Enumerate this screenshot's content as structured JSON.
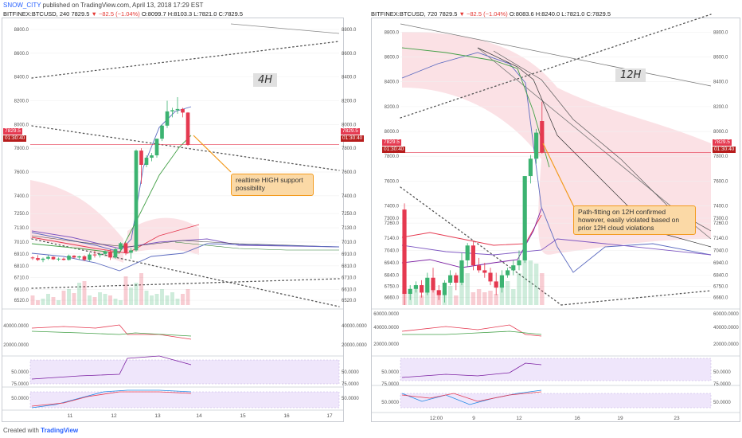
{
  "header": {
    "username": "SNOW_CITY",
    "published_text": "published on TradingView.com, April 13, 2018 17:29 EST"
  },
  "footer": {
    "created_with": "Created with",
    "brand": "TradingView"
  },
  "colors": {
    "up": "#3cb371",
    "down": "#e53950",
    "cloud": "#f7c8cf",
    "annotation_bg": "#fbd9a6",
    "annotation_border": "#f39b1f",
    "purple_band": "#efe6fb"
  },
  "left_panel": {
    "title_symbol": "BITFINEX:BTCUSD, 240",
    "title_price": "7829.5",
    "title_change": "▼ −82.5 (−1.04%)",
    "title_ohlc": "O:8099.7 H:8103.3 L:7821.0 C:7829.5",
    "timeframe_label": "4H",
    "price_tag": "7829.5",
    "time_tag": "01:30:40",
    "annotation": "realtime HIGH support possibility",
    "y_ticks": [
      "8800.0",
      "8600.0",
      "8400.0",
      "8200.0",
      "8000.0",
      "7800.0",
      "7600.0",
      "7400.0",
      "7250.0",
      "7130.0",
      "7010.0",
      "6910.0",
      "6810.0",
      "6710.0",
      "6610.0",
      "6520.0"
    ],
    "osc1_ticks": [
      "40000.0000",
      "20000.0000"
    ],
    "osc2_ticks": [
      "50.0000"
    ],
    "osc3_ticks": [
      "75.0000",
      "50.0000"
    ],
    "x_ticks": [
      "11",
      "12",
      "13",
      "14",
      "15",
      "16",
      "17"
    ],
    "osc3_tick_top": "60.0000"
  },
  "right_panel": {
    "title_symbol": "BITFINEX:BTCUSD, 720",
    "title_price": "7829.5",
    "title_change": "▼ −82.5 (−1.04%)",
    "title_ohlc": "O:8083.6 H:8240.0 L:7821.0 C:7829.5",
    "timeframe_label": "12H",
    "price_tag": "7829.5",
    "time_tag": "01:30:40",
    "annotation": "Path-fitting on 12H confirmed however, easily violated based on prior 12H cloud violations",
    "y_ticks": [
      "8800.0",
      "8600.0",
      "8400.0",
      "8200.0",
      "8000.0",
      "7800.0",
      "7600.0",
      "7400.0",
      "7300.0",
      "7260.0",
      "7140.0",
      "7040.0",
      "6940.0",
      "6840.0",
      "6750.0",
      "6660.0"
    ],
    "osc1_ticks": [
      "60000.0000",
      "40000.0000",
      "20000.0000"
    ],
    "osc2_ticks": [
      "50.0000"
    ],
    "osc3_ticks": [
      "75.0000",
      "50.0000"
    ],
    "x_ticks": [
      "12:00",
      "9",
      "12",
      "16",
      "19",
      "23"
    ],
    "osc3_tick_top": "100.0000"
  },
  "chart_data": [
    {
      "type": "candlestick",
      "title": "BITFINEX:BTCUSD, 240",
      "timeframe": "4H",
      "ylim": [
        6480,
        8860
      ],
      "last_price": 7829.5,
      "candles": [
        [
          6880,
          6890,
          6860,
          6875
        ],
        [
          6875,
          6900,
          6850,
          6860
        ],
        [
          6860,
          6880,
          6840,
          6870
        ],
        [
          6870,
          6900,
          6860,
          6885
        ],
        [
          6885,
          6890,
          6860,
          6865
        ],
        [
          6865,
          6880,
          6850,
          6870
        ],
        [
          6870,
          6880,
          6855,
          6860
        ],
        [
          6860,
          6905,
          6855,
          6895
        ],
        [
          6895,
          6900,
          6870,
          6880
        ],
        [
          6880,
          6895,
          6860,
          6890
        ],
        [
          6890,
          6900,
          6850,
          6860
        ],
        [
          6860,
          6920,
          6850,
          6905
        ],
        [
          6905,
          6940,
          6880,
          6900
        ],
        [
          6900,
          6920,
          6880,
          6910
        ],
        [
          6910,
          6940,
          6890,
          6930
        ],
        [
          6930,
          6950,
          6860,
          6880
        ],
        [
          6880,
          6960,
          6870,
          6950
        ],
        [
          6950,
          7010,
          6930,
          7000
        ],
        [
          7000,
          7010,
          6900,
          6920
        ],
        [
          6920,
          6960,
          6870,
          6940
        ],
        [
          6940,
          7790,
          6930,
          7780
        ],
        [
          7780,
          7800,
          7500,
          7660
        ],
        [
          7660,
          7740,
          7640,
          7720
        ],
        [
          7720,
          7760,
          7690,
          7740
        ],
        [
          7740,
          7880,
          7720,
          7880
        ],
        [
          7880,
          8000,
          7860,
          7990
        ],
        [
          7990,
          8200,
          7970,
          8110
        ],
        [
          8110,
          8140,
          8060,
          8120
        ],
        [
          8120,
          8230,
          8090,
          8130
        ],
        [
          8130,
          8140,
          8060,
          8100
        ],
        [
          8100,
          8103,
          7821,
          7829.5
        ]
      ]
    },
    {
      "type": "candlestick",
      "title": "BITFINEX:BTCUSD, 720",
      "timeframe": "12H",
      "ylim": [
        6600,
        8880
      ],
      "last_price": 7829.5,
      "candles": [
        [
          7370,
          7420,
          6600,
          6690
        ],
        [
          6690,
          6760,
          6640,
          6730
        ],
        [
          6730,
          6790,
          6700,
          6760
        ],
        [
          6760,
          6800,
          6660,
          6700
        ],
        [
          6700,
          6860,
          6680,
          6820
        ],
        [
          6820,
          6900,
          6700,
          6720
        ],
        [
          6720,
          6760,
          6640,
          6680
        ],
        [
          6680,
          6800,
          6620,
          6780
        ],
        [
          6780,
          6880,
          6760,
          6840
        ],
        [
          6840,
          6860,
          6720,
          6780
        ],
        [
          6780,
          7020,
          6760,
          6960
        ],
        [
          6960,
          7100,
          6910,
          7080
        ],
        [
          7080,
          7120,
          6880,
          6920
        ],
        [
          6920,
          6980,
          6860,
          6880
        ],
        [
          6880,
          6940,
          6820,
          6860
        ],
        [
          6860,
          6900,
          6760,
          6790
        ],
        [
          6790,
          6860,
          6680,
          6740
        ],
        [
          6740,
          6880,
          6700,
          6840
        ],
        [
          6840,
          6900,
          6820,
          6880
        ],
        [
          6880,
          6960,
          6840,
          6920
        ],
        [
          6920,
          7040,
          6880,
          6960
        ],
        [
          6960,
          7640,
          6940,
          7640
        ],
        [
          7640,
          7810,
          7580,
          7780
        ],
        [
          7780,
          8020,
          7740,
          7990
        ],
        [
          8083.6,
          8240,
          7821,
          7829.5
        ]
      ]
    }
  ]
}
